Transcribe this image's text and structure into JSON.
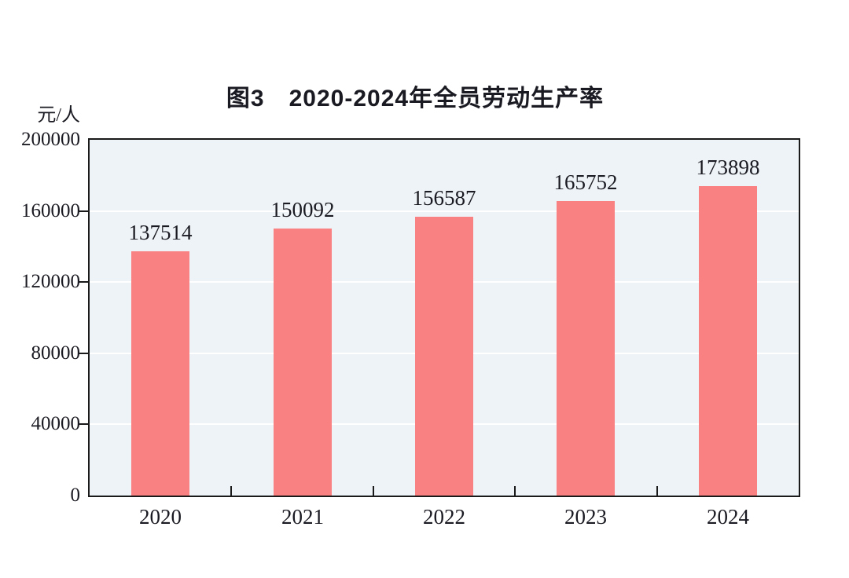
{
  "chart_data": {
    "type": "bar",
    "title": "图3　2020-2024年全员劳动生产率",
    "unit_label": "元/人",
    "categories": [
      "2020",
      "2021",
      "2022",
      "2023",
      "2024"
    ],
    "values": [
      137514,
      150092,
      156587,
      165752,
      173898
    ],
    "data_labels": [
      "137514",
      "150092",
      "156587",
      "165752",
      "173898"
    ],
    "ylim": [
      0,
      200000
    ],
    "yticks": [
      0,
      40000,
      80000,
      120000,
      160000,
      200000
    ],
    "ytick_labels": [
      "0",
      "40000",
      "80000",
      "120000",
      "160000",
      "200000"
    ],
    "grid": true,
    "legend_position": "none",
    "colors": {
      "bar": "#FA8181",
      "plot_background": "#EDF3F6",
      "gridline": "#FFFFFF",
      "axis_border": "#1A1A1A",
      "text": "#1A1A22"
    }
  }
}
